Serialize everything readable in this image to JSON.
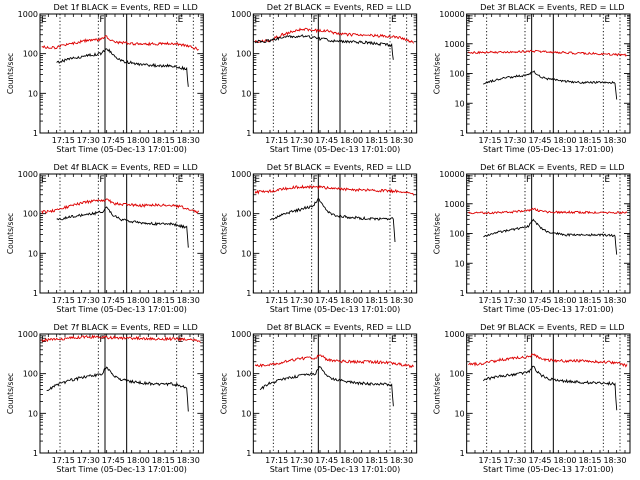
{
  "colors": {
    "events": "#000000",
    "lld": "#dd0000",
    "axis": "#000000",
    "background": "#ffffff"
  },
  "chart_data": [
    {
      "type": "line",
      "title": "Det 1f BLACK = Events, RED = LLD",
      "xlabel": "Start Time (05-Dec-13 17:01:00)",
      "ylabel": "Counts/sec",
      "yscale": "log",
      "ylim": [
        1,
        1000
      ],
      "xlim": [
        "17:01",
        "18:39"
      ],
      "x_ticks": [
        "17:15",
        "17:30",
        "17:45",
        "18:00",
        "18:15",
        "18:30"
      ],
      "y_ticks": [
        "1",
        "10",
        "100",
        "1000"
      ],
      "markers": {
        "dotted": [
          "17:13",
          "17:36",
          "18:23",
          "18:33"
        ],
        "solid": [
          "17:40",
          "17:53"
        ],
        "labels": [
          {
            "text": "E",
            "at": "17:01"
          },
          {
            "text": "F",
            "at": "17:36"
          },
          {
            "text": "E",
            "at": "18:23"
          }
        ]
      },
      "series": [
        {
          "name": "LLD",
          "color": "#dd0000",
          "x": [
            "17:02",
            "17:10",
            "17:20",
            "17:30",
            "17:38",
            "17:41",
            "17:45",
            "17:50",
            "18:00",
            "18:10",
            "18:20",
            "18:25",
            "18:30",
            "18:36"
          ],
          "y": [
            150,
            140,
            180,
            220,
            230,
            270,
            200,
            190,
            175,
            175,
            180,
            170,
            155,
            130
          ]
        },
        {
          "name": "Events",
          "color": "#000000",
          "x": [
            "17:11",
            "17:20",
            "17:30",
            "17:38",
            "17:41",
            "17:45",
            "17:50",
            "18:00",
            "18:10",
            "18:20",
            "18:25",
            "18:29",
            "18:30"
          ],
          "y": [
            60,
            75,
            90,
            100,
            140,
            90,
            65,
            55,
            50,
            50,
            45,
            40,
            15
          ]
        }
      ]
    },
    {
      "type": "line",
      "title": "Det 2f BLACK = Events, RED = LLD",
      "xlabel": "Start Time (05-Dec-13 17:01:00)",
      "ylabel": "Counts/sec",
      "yscale": "log",
      "ylim": [
        1,
        1000
      ],
      "xlim": [
        "17:01",
        "18:39"
      ],
      "x_ticks": [
        "17:15",
        "17:30",
        "17:45",
        "18:00",
        "18:15",
        "18:30"
      ],
      "y_ticks": [
        "1",
        "10",
        "100",
        "1000"
      ],
      "markers": {
        "dotted": [
          "17:13",
          "17:36",
          "18:23",
          "18:33"
        ],
        "solid": [
          "17:40",
          "17:53"
        ],
        "labels": [
          {
            "text": "E",
            "at": "17:01"
          },
          {
            "text": "F",
            "at": "17:36"
          },
          {
            "text": "E",
            "at": "18:23"
          }
        ]
      },
      "series": [
        {
          "name": "LLD",
          "color": "#dd0000",
          "x": [
            "17:02",
            "17:10",
            "17:20",
            "17:30",
            "17:40",
            "17:46",
            "17:50",
            "18:00",
            "18:10",
            "18:20",
            "18:30",
            "18:37"
          ],
          "y": [
            200,
            210,
            320,
            420,
            380,
            380,
            320,
            300,
            290,
            280,
            250,
            190
          ]
        },
        {
          "name": "Events",
          "color": "#000000",
          "x": [
            "17:02",
            "17:10",
            "17:20",
            "17:30",
            "17:40",
            "17:46",
            "17:50",
            "18:00",
            "18:10",
            "18:20",
            "18:24",
            "18:25"
          ],
          "y": [
            200,
            210,
            260,
            280,
            240,
            220,
            210,
            200,
            190,
            170,
            160,
            70
          ]
        }
      ]
    },
    {
      "type": "line",
      "title": "Det 3f BLACK = Events, RED = LLD",
      "xlabel": "Start Time (05-Dec-13 17:01:00)",
      "ylabel": "Counts/sec",
      "yscale": "log",
      "ylim": [
        1,
        10000
      ],
      "xlim": [
        "17:01",
        "18:39"
      ],
      "x_ticks": [
        "17:15",
        "17:30",
        "17:45",
        "18:00",
        "18:15",
        "18:30"
      ],
      "y_ticks": [
        "1",
        "10",
        "100",
        "1000",
        "10000"
      ],
      "markers": {
        "dotted": [
          "17:13",
          "17:36",
          "18:23",
          "18:33"
        ],
        "solid": [
          "17:40",
          "17:53"
        ],
        "labels": [
          {
            "text": "E",
            "at": "17:01"
          },
          {
            "text": "F",
            "at": "17:36"
          },
          {
            "text": "E",
            "at": "18:23"
          }
        ]
      },
      "series": [
        {
          "name": "LLD",
          "color": "#dd0000",
          "x": [
            "17:02",
            "17:20",
            "17:40",
            "18:00",
            "18:20",
            "18:37"
          ],
          "y": [
            500,
            520,
            560,
            500,
            460,
            420
          ]
        },
        {
          "name": "Events",
          "color": "#000000",
          "x": [
            "17:11",
            "17:20",
            "17:30",
            "17:38",
            "17:41",
            "17:45",
            "17:50",
            "18:00",
            "18:10",
            "18:20",
            "18:30",
            "18:31"
          ],
          "y": [
            45,
            65,
            80,
            90,
            120,
            80,
            65,
            55,
            50,
            50,
            50,
            14
          ]
        }
      ]
    },
    {
      "type": "line",
      "title": "Det 4f BLACK = Events, RED = LLD",
      "xlabel": "Start Time (05-Dec-13 17:01:00)",
      "ylabel": "Counts/sec",
      "yscale": "log",
      "ylim": [
        1,
        1000
      ],
      "xlim": [
        "17:01",
        "18:39"
      ],
      "x_ticks": [
        "17:15",
        "17:30",
        "17:45",
        "18:00",
        "18:15",
        "18:30"
      ],
      "y_ticks": [
        "1",
        "10",
        "100",
        "1000"
      ],
      "markers": {
        "dotted": [
          "17:13",
          "17:36",
          "18:23",
          "18:33"
        ],
        "solid": [
          "17:40",
          "17:53"
        ],
        "labels": [
          {
            "text": "E",
            "at": "17:01"
          },
          {
            "text": "F",
            "at": "17:36"
          },
          {
            "text": "E",
            "at": "18:23"
          }
        ]
      },
      "series": [
        {
          "name": "LLD",
          "color": "#dd0000",
          "x": [
            "17:02",
            "17:10",
            "17:20",
            "17:30",
            "17:38",
            "17:41",
            "17:45",
            "17:50",
            "18:00",
            "18:10",
            "18:20",
            "18:25",
            "18:30",
            "18:36"
          ],
          "y": [
            110,
            120,
            160,
            200,
            210,
            230,
            180,
            170,
            160,
            165,
            165,
            150,
            130,
            110
          ]
        },
        {
          "name": "Events",
          "color": "#000000",
          "x": [
            "17:11",
            "17:20",
            "17:30",
            "17:38",
            "17:41",
            "17:45",
            "17:50",
            "18:00",
            "18:10",
            "18:20",
            "18:25",
            "18:29",
            "18:30"
          ],
          "y": [
            70,
            85,
            95,
            110,
            140,
            90,
            70,
            60,
            55,
            55,
            50,
            45,
            15
          ]
        }
      ]
    },
    {
      "type": "line",
      "title": "Det 5f BLACK = Events, RED = LLD",
      "xlabel": "Start Time (05-Dec-13 17:01:00)",
      "ylabel": "Counts/sec",
      "yscale": "log",
      "ylim": [
        1,
        1000
      ],
      "xlim": [
        "17:01",
        "18:39"
      ],
      "x_ticks": [
        "17:15",
        "17:30",
        "17:45",
        "18:00",
        "18:15",
        "18:30"
      ],
      "y_ticks": [
        "1",
        "10",
        "100",
        "1000"
      ],
      "markers": {
        "dotted": [
          "17:13",
          "17:36",
          "18:23",
          "18:33"
        ],
        "solid": [
          "17:40",
          "17:53"
        ],
        "labels": [
          {
            "text": "E",
            "at": "17:01"
          },
          {
            "text": "F",
            "at": "17:36"
          },
          {
            "text": "E",
            "at": "18:23"
          }
        ]
      },
      "series": [
        {
          "name": "LLD",
          "color": "#dd0000",
          "x": [
            "17:02",
            "17:10",
            "17:20",
            "17:30",
            "17:40",
            "17:46",
            "17:50",
            "18:00",
            "18:10",
            "18:20",
            "18:30",
            "18:37"
          ],
          "y": [
            350,
            360,
            430,
            480,
            460,
            450,
            420,
            400,
            390,
            380,
            360,
            320
          ]
        },
        {
          "name": "Events",
          "color": "#000000",
          "x": [
            "17:11",
            "17:20",
            "17:30",
            "17:37",
            "17:40",
            "17:45",
            "17:50",
            "18:00",
            "18:10",
            "18:20",
            "18:25",
            "18:26"
          ],
          "y": [
            70,
            100,
            130,
            160,
            240,
            120,
            90,
            80,
            75,
            75,
            75,
            20
          ]
        }
      ]
    },
    {
      "type": "line",
      "title": "Det 6f BLACK = Events, RED = LLD",
      "xlabel": "Start Time (05-Dec-13 17:01:00)",
      "ylabel": "Counts/sec",
      "yscale": "log",
      "ylim": [
        1,
        10000
      ],
      "xlim": [
        "17:01",
        "18:39"
      ],
      "x_ticks": [
        "17:15",
        "17:30",
        "17:45",
        "18:00",
        "18:15",
        "18:30"
      ],
      "y_ticks": [
        "1",
        "10",
        "100",
        "1000",
        "10000"
      ],
      "markers": {
        "dotted": [
          "17:13",
          "17:36",
          "18:23",
          "18:33"
        ],
        "solid": [
          "17:40",
          "17:53"
        ],
        "labels": [
          {
            "text": "E",
            "at": "17:01"
          },
          {
            "text": "F",
            "at": "17:36"
          },
          {
            "text": "E",
            "at": "18:23"
          }
        ]
      },
      "series": [
        {
          "name": "LLD",
          "color": "#dd0000",
          "x": [
            "17:02",
            "17:20",
            "17:30",
            "17:38",
            "17:41",
            "17:45",
            "17:50",
            "18:00",
            "18:20",
            "18:37"
          ],
          "y": [
            480,
            500,
            540,
            600,
            680,
            560,
            520,
            520,
            510,
            500
          ]
        },
        {
          "name": "Events",
          "color": "#000000",
          "x": [
            "17:11",
            "17:20",
            "17:30",
            "17:38",
            "17:41",
            "17:45",
            "17:50",
            "18:00",
            "18:10",
            "18:20",
            "18:30",
            "18:31"
          ],
          "y": [
            80,
            110,
            140,
            170,
            300,
            160,
            110,
            90,
            90,
            90,
            85,
            20
          ]
        }
      ]
    },
    {
      "type": "line",
      "title": "Det 7f BLACK = Events, RED = LLD",
      "xlabel": "Start Time (05-Dec-13 17:01:00)",
      "ylabel": "Counts/sec",
      "yscale": "log",
      "ylim": [
        1,
        1000
      ],
      "xlim": [
        "17:01",
        "18:39"
      ],
      "x_ticks": [
        "17:15",
        "17:30",
        "17:45",
        "18:00",
        "18:15",
        "18:30"
      ],
      "y_ticks": [
        "1",
        "10",
        "100",
        "1000"
      ],
      "markers": {
        "dotted": [
          "17:13",
          "17:36",
          "18:23",
          "18:33"
        ],
        "solid": [
          "17:40",
          "17:53"
        ],
        "labels": [
          {
            "text": "E",
            "at": "17:01"
          },
          {
            "text": "F",
            "at": "17:36"
          },
          {
            "text": "E",
            "at": "18:23"
          }
        ]
      },
      "series": [
        {
          "name": "LLD",
          "color": "#dd0000",
          "x": [
            "17:02",
            "17:10",
            "17:20",
            "17:30",
            "17:40",
            "17:50",
            "18:00",
            "18:10",
            "18:20",
            "18:30",
            "18:37"
          ],
          "y": [
            700,
            720,
            800,
            850,
            820,
            800,
            780,
            760,
            750,
            720,
            650
          ]
        },
        {
          "name": "Events",
          "color": "#000000",
          "x": [
            "17:05",
            "17:10",
            "17:20",
            "17:30",
            "17:38",
            "17:41",
            "17:45",
            "17:50",
            "18:00",
            "18:10",
            "18:20",
            "18:25",
            "18:29",
            "18:30"
          ],
          "y": [
            35,
            50,
            70,
            85,
            100,
            150,
            90,
            70,
            60,
            55,
            55,
            50,
            45,
            12
          ]
        }
      ]
    },
    {
      "type": "line",
      "title": "Det 8f BLACK = Events, RED = LLD",
      "xlabel": "Start Time (05-Dec-13 17:01:00)",
      "ylabel": "Counts/sec",
      "yscale": "log",
      "ylim": [
        1,
        1000
      ],
      "xlim": [
        "17:01",
        "18:39"
      ],
      "x_ticks": [
        "17:15",
        "17:30",
        "17:45",
        "18:00",
        "18:15",
        "18:30"
      ],
      "y_ticks": [
        "1",
        "10",
        "100",
        "1000"
      ],
      "markers": {
        "dotted": [
          "17:13",
          "17:36",
          "18:23",
          "18:33"
        ],
        "solid": [
          "17:40",
          "17:53"
        ],
        "labels": [
          {
            "text": "E",
            "at": "17:01"
          },
          {
            "text": "F",
            "at": "17:36"
          },
          {
            "text": "E",
            "at": "18:23"
          }
        ]
      },
      "series": [
        {
          "name": "LLD",
          "color": "#dd0000",
          "x": [
            "17:02",
            "17:10",
            "17:20",
            "17:30",
            "17:38",
            "17:41",
            "17:45",
            "17:50",
            "18:00",
            "18:10",
            "18:20",
            "18:30",
            "18:37"
          ],
          "y": [
            160,
            160,
            200,
            240,
            250,
            300,
            230,
            210,
            200,
            200,
            190,
            170,
            150
          ]
        },
        {
          "name": "Events",
          "color": "#000000",
          "x": [
            "17:05",
            "17:10",
            "17:20",
            "17:30",
            "17:38",
            "17:41",
            "17:45",
            "17:50",
            "18:00",
            "18:10",
            "18:20",
            "18:24",
            "18:25"
          ],
          "y": [
            40,
            55,
            75,
            90,
            100,
            150,
            90,
            70,
            60,
            55,
            55,
            50,
            15
          ]
        }
      ]
    },
    {
      "type": "line",
      "title": "Det 9f BLACK = Events, RED = LLD",
      "xlabel": "Start Time (05-Dec-13 17:01:00)",
      "ylabel": "Counts/sec",
      "yscale": "log",
      "ylim": [
        1,
        1000
      ],
      "xlim": [
        "17:01",
        "18:39"
      ],
      "x_ticks": [
        "17:15",
        "17:30",
        "17:45",
        "18:00",
        "18:15",
        "18:30"
      ],
      "y_ticks": [
        "1",
        "10",
        "100",
        "1000"
      ],
      "markers": {
        "dotted": [
          "17:13",
          "17:36",
          "18:23",
          "18:33"
        ],
        "solid": [
          "17:40",
          "17:53"
        ],
        "labels": [
          {
            "text": "E",
            "at": "17:01"
          },
          {
            "text": "F",
            "at": "17:36"
          },
          {
            "text": "E",
            "at": "18:23"
          }
        ]
      },
      "series": [
        {
          "name": "LLD",
          "color": "#dd0000",
          "x": [
            "17:02",
            "17:10",
            "17:20",
            "17:30",
            "17:38",
            "17:41",
            "17:45",
            "17:50",
            "18:00",
            "18:10",
            "18:20",
            "18:30",
            "18:37"
          ],
          "y": [
            170,
            180,
            220,
            250,
            270,
            300,
            240,
            220,
            210,
            210,
            200,
            190,
            160
          ]
        },
        {
          "name": "Events",
          "color": "#000000",
          "x": [
            "17:11",
            "17:20",
            "17:30",
            "17:38",
            "17:41",
            "17:45",
            "17:50",
            "18:00",
            "18:10",
            "18:20",
            "18:30",
            "18:31"
          ],
          "y": [
            70,
            85,
            95,
            110,
            150,
            95,
            75,
            65,
            60,
            60,
            55,
            12
          ]
        }
      ]
    }
  ]
}
